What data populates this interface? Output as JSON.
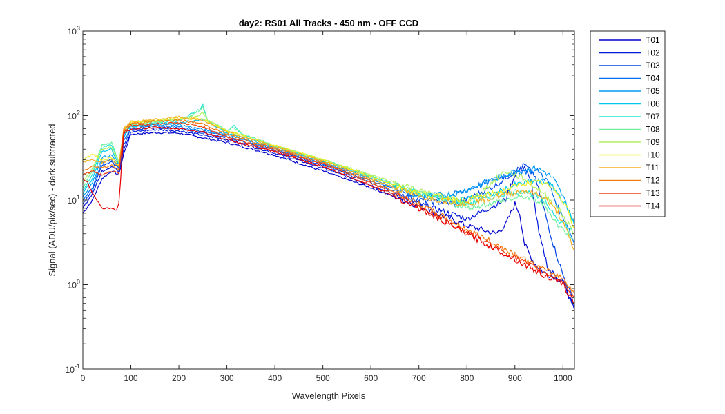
{
  "chart_data": {
    "type": "line",
    "title": "day2: RS01  All Tracks - 450 nm - OFF CCD",
    "xlabel": "Wavelength Pixels",
    "ylabel": "Signal (ADU/pix/sec) - dark subtracted",
    "xlim": [
      0,
      1024
    ],
    "ylim": [
      0.1,
      1000
    ],
    "yscale": "log",
    "xticks": [
      "0",
      "100",
      "200",
      "300",
      "400",
      "500",
      "600",
      "700",
      "800",
      "900",
      "1000"
    ],
    "yticks": [
      {
        "base": "10",
        "exp": "-1"
      },
      {
        "base": "10",
        "exp": "0"
      },
      {
        "base": "10",
        "exp": "1"
      },
      {
        "base": "10",
        "exp": "2"
      },
      {
        "base": "10",
        "exp": "3"
      }
    ],
    "legend_position": "outside-right",
    "grid": false,
    "series": [
      {
        "name": "T01",
        "color": "#0000cc",
        "x": [
          0,
          20,
          40,
          60,
          75,
          85,
          100,
          150,
          200,
          300,
          400,
          500,
          600,
          700,
          800,
          860,
          880,
          900,
          910,
          920,
          940,
          960,
          1000,
          1024
        ],
        "y": [
          7,
          10,
          18,
          22,
          20,
          35,
          60,
          63,
          62,
          48,
          34,
          22,
          14,
          8.5,
          5,
          4,
          5,
          9,
          7,
          3,
          1.8,
          1.4,
          1.1,
          0.5
        ]
      },
      {
        "name": "T02",
        "color": "#0018d9",
        "x": [
          0,
          20,
          40,
          60,
          75,
          85,
          100,
          150,
          200,
          300,
          400,
          500,
          600,
          700,
          800,
          880,
          900,
          920,
          935,
          950,
          970,
          1000,
          1024
        ],
        "y": [
          8,
          12,
          22,
          25,
          22,
          40,
          64,
          68,
          66,
          52,
          36,
          24,
          15,
          9,
          6,
          10,
          20,
          25,
          15,
          4,
          1.5,
          1.1,
          0.5
        ]
      },
      {
        "name": "T03",
        "color": "#0044e6",
        "x": [
          0,
          20,
          40,
          60,
          75,
          85,
          100,
          150,
          200,
          300,
          400,
          500,
          600,
          700,
          780,
          860,
          900,
          920,
          940,
          960,
          980,
          1000,
          1024
        ],
        "y": [
          9,
          13,
          26,
          28,
          24,
          45,
          68,
          72,
          70,
          55,
          38,
          26,
          16,
          10,
          9,
          15,
          22,
          26,
          20,
          8,
          3,
          1.3,
          0.6
        ]
      },
      {
        "name": "T04",
        "color": "#0070f0",
        "x": [
          0,
          20,
          40,
          60,
          75,
          85,
          100,
          150,
          200,
          300,
          400,
          500,
          600,
          700,
          760,
          840,
          880,
          920,
          950,
          970,
          990,
          1010,
          1024
        ],
        "y": [
          10,
          14,
          28,
          30,
          25,
          50,
          70,
          75,
          74,
          58,
          40,
          27,
          17,
          11,
          11,
          16,
          20,
          22,
          22,
          16,
          8,
          5,
          3
        ]
      },
      {
        "name": "T05",
        "color": "#009cf5",
        "x": [
          0,
          20,
          40,
          60,
          75,
          85,
          100,
          150,
          200,
          300,
          400,
          500,
          600,
          700,
          780,
          860,
          900,
          940,
          960,
          980,
          1000,
          1015,
          1024
        ],
        "y": [
          11,
          16,
          32,
          34,
          26,
          55,
          72,
          78,
          78,
          60,
          41,
          28,
          18,
          11,
          12,
          18,
          22,
          24,
          22,
          18,
          11,
          7,
          5
        ]
      },
      {
        "name": "T06",
        "color": "#00c8f0",
        "x": [
          0,
          20,
          40,
          60,
          75,
          85,
          100,
          150,
          200,
          250,
          300,
          400,
          500,
          600,
          700,
          780,
          860,
          900,
          940,
          970,
          990,
          1010,
          1024
        ],
        "y": [
          12,
          18,
          38,
          40,
          27,
          60,
          74,
          80,
          82,
          90,
          62,
          42,
          29,
          19,
          12,
          10,
          12,
          15,
          17,
          16,
          12,
          8,
          5
        ]
      },
      {
        "name": "T07",
        "color": "#20e6d4",
        "x": [
          0,
          20,
          40,
          60,
          75,
          85,
          100,
          150,
          200,
          245,
          250,
          260,
          300,
          315,
          330,
          400,
          500,
          600,
          700,
          800,
          880,
          920,
          960,
          990,
          1024
        ],
        "y": [
          13,
          20,
          42,
          45,
          28,
          62,
          76,
          82,
          86,
          120,
          135,
          85,
          66,
          75,
          60,
          43,
          30,
          19,
          12,
          9,
          12,
          13,
          10,
          6,
          4
        ]
      },
      {
        "name": "T08",
        "color": "#70f0a0",
        "x": [
          0,
          20,
          40,
          60,
          75,
          85,
          100,
          150,
          200,
          240,
          250,
          260,
          300,
          315,
          330,
          400,
          500,
          600,
          700,
          800,
          880,
          920,
          960,
          990,
          1024
        ],
        "y": [
          14,
          22,
          45,
          48,
          29,
          64,
          78,
          84,
          88,
          110,
          125,
          88,
          68,
          72,
          62,
          44,
          30,
          19,
          12,
          8,
          10,
          11,
          9,
          5,
          3.5
        ]
      },
      {
        "name": "T09",
        "color": "#b0f060",
        "x": [
          0,
          20,
          40,
          60,
          75,
          85,
          100,
          150,
          200,
          240,
          250,
          260,
          300,
          400,
          500,
          600,
          700,
          800,
          880,
          920,
          960,
          990,
          1024
        ],
        "y": [
          16,
          24,
          40,
          42,
          28,
          66,
          80,
          86,
          90,
          100,
          110,
          88,
          66,
          44,
          30,
          20,
          13,
          9,
          22,
          18,
          12,
          8,
          4
        ]
      },
      {
        "name": "T10",
        "color": "#f0f020",
        "x": [
          0,
          20,
          40,
          60,
          75,
          85,
          100,
          150,
          200,
          250,
          300,
          400,
          500,
          600,
          700,
          800,
          880,
          920,
          960,
          990,
          1010,
          1024
        ],
        "y": [
          30,
          35,
          30,
          32,
          26,
          68,
          82,
          88,
          94,
          90,
          66,
          44,
          30,
          19,
          12,
          10,
          13,
          16,
          16,
          12,
          8,
          4.5
        ]
      },
      {
        "name": "T11",
        "color": "#f5b020",
        "x": [
          0,
          20,
          40,
          60,
          75,
          85,
          100,
          150,
          200,
          250,
          300,
          400,
          500,
          600,
          700,
          800,
          860,
          920,
          960,
          990,
          1010,
          1024
        ],
        "y": [
          28,
          30,
          28,
          30,
          25,
          70,
          84,
          90,
          96,
          88,
          64,
          43,
          29,
          18,
          11,
          9,
          11,
          13,
          11,
          7,
          4,
          2.5
        ]
      },
      {
        "name": "T12",
        "color": "#f57a10",
        "x": [
          0,
          20,
          40,
          60,
          75,
          85,
          100,
          150,
          200,
          250,
          300,
          400,
          500,
          600,
          700,
          800,
          900,
          960,
          1000,
          1024
        ],
        "y": [
          22,
          25,
          24,
          26,
          23,
          68,
          80,
          86,
          88,
          80,
          60,
          41,
          28,
          17,
          9,
          4.5,
          2.3,
          1.5,
          1.2,
          0.8
        ]
      },
      {
        "name": "T13",
        "color": "#f04010",
        "x": [
          0,
          20,
          40,
          60,
          75,
          85,
          100,
          150,
          200,
          250,
          300,
          400,
          500,
          600,
          700,
          800,
          900,
          960,
          1000,
          1024
        ],
        "y": [
          20,
          22,
          20,
          22,
          21,
          64,
          76,
          80,
          82,
          74,
          56,
          39,
          27,
          16,
          8.5,
          4.2,
          2.1,
          1.4,
          1.1,
          0.7
        ]
      },
      {
        "name": "T14",
        "color": "#e60000",
        "x": [
          0,
          10,
          20,
          30,
          40,
          55,
          70,
          75,
          85,
          100,
          150,
          200,
          250,
          300,
          400,
          500,
          600,
          700,
          800,
          900,
          960,
          1000,
          1024
        ],
        "y": [
          18,
          16,
          12,
          10,
          8,
          8,
          7.5,
          9,
          60,
          70,
          72,
          70,
          64,
          52,
          37,
          25,
          15,
          8,
          4,
          2,
          1.3,
          1,
          0.6
        ]
      }
    ]
  }
}
